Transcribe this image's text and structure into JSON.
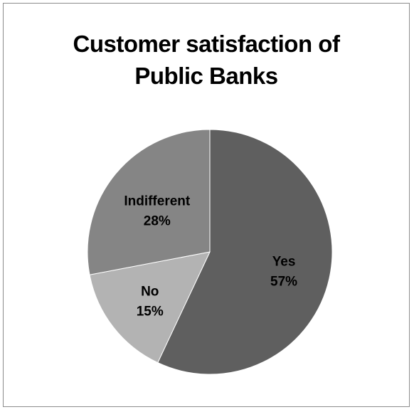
{
  "chart_data": {
    "type": "pie",
    "title_lines": [
      "Customer satisfaction of",
      "Public Banks"
    ],
    "categories": [
      "Yes",
      "No",
      "Indifferent"
    ],
    "values": [
      57,
      15,
      28
    ],
    "percent_labels": [
      "57%",
      "15%",
      "28%"
    ],
    "colors": [
      "#5f5f5f",
      "#b3b3b3",
      "#858585"
    ],
    "start_angle_deg": 0,
    "direction": "clockwise",
    "legend": "none",
    "data_labels": "inside"
  }
}
